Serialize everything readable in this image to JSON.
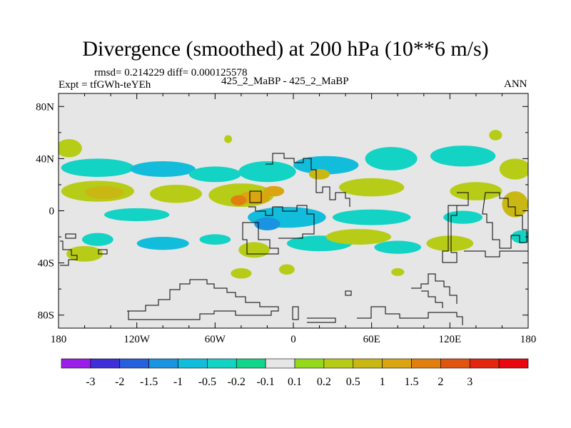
{
  "chart_data": {
    "type": "heatmap",
    "title": "Divergence (smoothed) at 200 hPa (10**6 m/s)",
    "stats": "rmsd= 0.214229 diff= 0.000125578",
    "case_label": "425_2_MaBP - 425_2_MaBP",
    "season": "ANN",
    "expt_label": "Expt = tfGWh-teYEh",
    "xlim": [
      -180,
      180
    ],
    "ylim": [
      -90,
      90
    ],
    "x_ticks": [
      {
        "value": -180,
        "label": "180"
      },
      {
        "value": -120,
        "label": "120W"
      },
      {
        "value": -60,
        "label": "60W"
      },
      {
        "value": 0,
        "label": "0"
      },
      {
        "value": 60,
        "label": "60E"
      },
      {
        "value": 120,
        "label": "120E"
      },
      {
        "value": 180,
        "label": "180"
      }
    ],
    "y_ticks": [
      {
        "value": 80,
        "label": "80N"
      },
      {
        "value": 40,
        "label": "40N"
      },
      {
        "value": 0,
        "label": "0"
      },
      {
        "value": -40,
        "label": "40S"
      },
      {
        "value": -80,
        "label": "80S"
      }
    ],
    "colorbar": {
      "colors": [
        "#9b1fe8",
        "#3e2fd9",
        "#2660dd",
        "#1a93e0",
        "#12bcdb",
        "#13d3c4",
        "#12d48b",
        "#e6e6e6",
        "#96d91a",
        "#b7cc17",
        "#c9b814",
        "#d9a512",
        "#e07f10",
        "#e05510",
        "#e3260f",
        "#e8080f"
      ],
      "labels": [
        "-3",
        "-2",
        "-1.5",
        "-1",
        "-0.5",
        "-0.2",
        "-0.1",
        "0.1",
        "0.2",
        "0.5",
        "1",
        "1.5",
        "2",
        "3"
      ]
    },
    "blobs": [
      {
        "lon": -172,
        "lat": 48,
        "rx": 10,
        "ry": 7,
        "level": 9
      },
      {
        "lon": -150,
        "lat": 33,
        "rx": 28,
        "ry": 7,
        "level": 5
      },
      {
        "lon": -100,
        "lat": 32,
        "rx": 25,
        "ry": 6,
        "level": 4
      },
      {
        "lon": -60,
        "lat": 28,
        "rx": 20,
        "ry": 6,
        "level": 5
      },
      {
        "lon": -20,
        "lat": 30,
        "rx": 22,
        "ry": 8,
        "level": 5
      },
      {
        "lon": 25,
        "lat": 35,
        "rx": 25,
        "ry": 7,
        "level": 4
      },
      {
        "lon": 75,
        "lat": 40,
        "rx": 20,
        "ry": 9,
        "level": 5
      },
      {
        "lon": 130,
        "lat": 42,
        "rx": 25,
        "ry": 8,
        "level": 5
      },
      {
        "lon": 155,
        "lat": 58,
        "rx": 5,
        "ry": 4,
        "level": 9
      },
      {
        "lon": 170,
        "lat": 32,
        "rx": 12,
        "ry": 8,
        "level": 9
      },
      {
        "lon": -50,
        "lat": 55,
        "rx": 3,
        "ry": 3,
        "level": 9
      },
      {
        "lon": -150,
        "lat": 15,
        "rx": 28,
        "ry": 8,
        "level": 9
      },
      {
        "lon": -145,
        "lat": 14,
        "rx": 15,
        "ry": 5,
        "level": 10
      },
      {
        "lon": -90,
        "lat": 13,
        "rx": 20,
        "ry": 7,
        "level": 9
      },
      {
        "lon": -40,
        "lat": 12,
        "rx": 25,
        "ry": 9,
        "level": 9
      },
      {
        "lon": -30,
        "lat": 10,
        "rx": 12,
        "ry": 5,
        "level": 11
      },
      {
        "lon": -42,
        "lat": 8,
        "rx": 6,
        "ry": 4,
        "level": 12
      },
      {
        "lon": -15,
        "lat": 15,
        "rx": 8,
        "ry": 4,
        "level": 11
      },
      {
        "lon": 60,
        "lat": 18,
        "rx": 25,
        "ry": 7,
        "level": 9
      },
      {
        "lon": 140,
        "lat": 15,
        "rx": 20,
        "ry": 7,
        "level": 9
      },
      {
        "lon": 170,
        "lat": 5,
        "rx": 10,
        "ry": 10,
        "level": 10
      },
      {
        "lon": 20,
        "lat": 28,
        "rx": 8,
        "ry": 4,
        "level": 10
      },
      {
        "lon": -120,
        "lat": -3,
        "rx": 25,
        "ry": 5,
        "level": 5
      },
      {
        "lon": -5,
        "lat": -5,
        "rx": 30,
        "ry": 8,
        "level": 4
      },
      {
        "lon": -20,
        "lat": -10,
        "rx": 10,
        "ry": 5,
        "level": 3
      },
      {
        "lon": 60,
        "lat": -5,
        "rx": 30,
        "ry": 6,
        "level": 5
      },
      {
        "lon": 130,
        "lat": -5,
        "rx": 15,
        "ry": 5,
        "level": 5
      },
      {
        "lon": -150,
        "lat": -22,
        "rx": 12,
        "ry": 5,
        "level": 5
      },
      {
        "lon": -100,
        "lat": -25,
        "rx": 20,
        "ry": 5,
        "level": 4
      },
      {
        "lon": -60,
        "lat": -22,
        "rx": 12,
        "ry": 4,
        "level": 5
      },
      {
        "lon": 20,
        "lat": -25,
        "rx": 25,
        "ry": 6,
        "level": 5
      },
      {
        "lon": 80,
        "lat": -28,
        "rx": 18,
        "ry": 5,
        "level": 5
      },
      {
        "lon": 175,
        "lat": -20,
        "rx": 8,
        "ry": 5,
        "level": 5
      },
      {
        "lon": -160,
        "lat": -33,
        "rx": 14,
        "ry": 6,
        "level": 9
      },
      {
        "lon": -30,
        "lat": -30,
        "rx": 12,
        "ry": 6,
        "level": 9
      },
      {
        "lon": 50,
        "lat": -20,
        "rx": 25,
        "ry": 6,
        "level": 9
      },
      {
        "lon": 120,
        "lat": -25,
        "rx": 18,
        "ry": 6,
        "level": 9
      },
      {
        "lon": -40,
        "lat": -48,
        "rx": 8,
        "ry": 4,
        "level": 9
      },
      {
        "lon": -5,
        "lat": -45,
        "rx": 6,
        "ry": 4,
        "level": 9
      },
      {
        "lon": 80,
        "lat": -47,
        "rx": 5,
        "ry": 3,
        "level": 9
      }
    ]
  }
}
